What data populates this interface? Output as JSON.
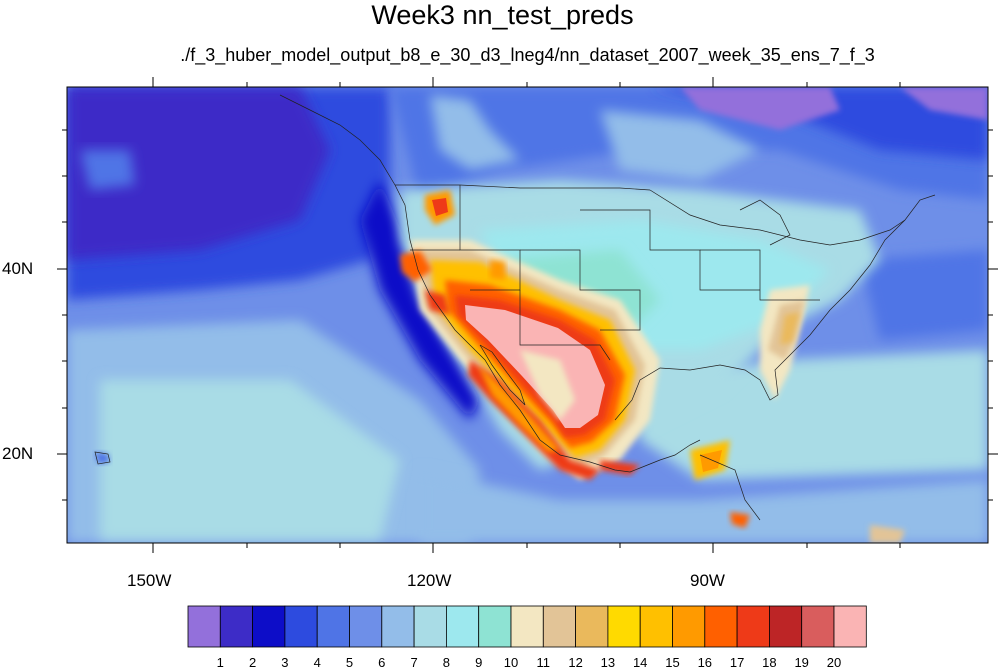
{
  "title": "Week3 nn_test_preds",
  "subtitle": "./f_3_huber_model_output_b8_e_30_d3_lneg4/nn_dataset_2007_week_35_ens_7_f_3",
  "axes": {
    "lon_labels": [
      "150W",
      "120W",
      "90W"
    ],
    "lat_labels": [
      "40N",
      "20N"
    ]
  },
  "colorbar": {
    "labels": [
      "1",
      "2",
      "3",
      "4",
      "5",
      "6",
      "7",
      "8",
      "9",
      "10",
      "11",
      "12",
      "13",
      "14",
      "15",
      "16",
      "17",
      "18",
      "19",
      "20"
    ],
    "colors": [
      "#9370DB",
      "#3D2CC7",
      "#0D0DC8",
      "#2D4BDF",
      "#4F74E6",
      "#6E8FE8",
      "#93BDE9",
      "#A9DCE6",
      "#9DE8EE",
      "#8EE3D3",
      "#F3E7C2",
      "#E2C497",
      "#EAB95C",
      "#FFDA00",
      "#FFC000",
      "#FF9A00",
      "#FF6000",
      "#EE3A18",
      "#BD2526",
      "#D95D5D",
      "#FAB4B4"
    ]
  },
  "chart_data": {
    "type": "heatmap",
    "title": "Week3 nn_test_preds",
    "subtitle": "./f_3_huber_model_output_b8_e_30_d3_lneg4/nn_dataset_2007_week_35_ens_7_f_3",
    "x_ticks": [
      "150W",
      "120W",
      "90W"
    ],
    "y_ticks": [
      "40N",
      "20N"
    ],
    "lon_range": [
      -160,
      -60
    ],
    "lat_range": [
      10,
      58
    ],
    "colorbar_levels": [
      1,
      2,
      3,
      4,
      5,
      6,
      7,
      8,
      9,
      10,
      11,
      12,
      13,
      14,
      15,
      16,
      17,
      18,
      19,
      20
    ],
    "grid": false
  }
}
